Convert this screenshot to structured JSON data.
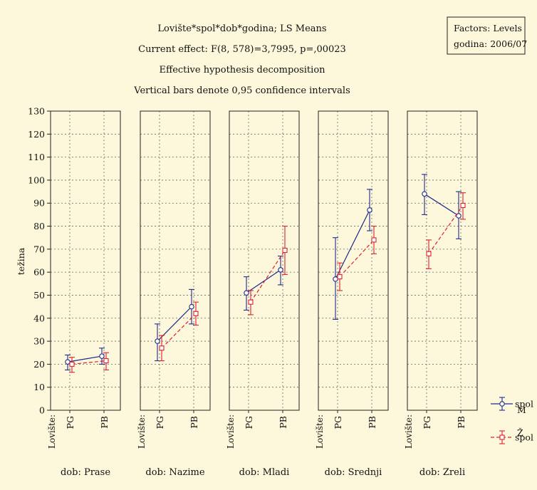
{
  "chart_data": {
    "type": "line",
    "title_lines": [
      "Lovište*spol*dob*godina; LS Means",
      "Current effect: F(8, 578)=3,7995, p=,00023",
      "Effective hypothesis decomposition",
      "Vertical bars denote 0,95 confidence intervals"
    ],
    "factors_box": [
      "Factors: Levels",
      "godina: 2006/07"
    ],
    "ylabel": "težina",
    "ylim": [
      0,
      130
    ],
    "yticks": [
      0,
      10,
      20,
      30,
      40,
      50,
      60,
      70,
      80,
      90,
      100,
      110,
      120,
      130
    ],
    "x_factor_label": "Lovište:",
    "categories": [
      "PG",
      "PB"
    ],
    "grid": true,
    "legend": {
      "title": "spol",
      "position": "bottom-right",
      "entries": [
        {
          "label": "spol",
          "level": "M",
          "color": "#1f2a8a",
          "marker": "circle",
          "line": "solid"
        },
        {
          "label": "spol",
          "level": "Ž",
          "color": "#e0202a",
          "marker": "square",
          "line": "dashed"
        }
      ]
    },
    "panels": [
      {
        "title": "dob: Prase",
        "series": [
          {
            "name": "M",
            "values": [
              21,
              23.5
            ],
            "ci_low": [
              17.5,
              20
            ],
            "ci_high": [
              24,
              27
            ]
          },
          {
            "name": "Ž",
            "values": [
              20,
              21.5
            ],
            "ci_low": [
              16.5,
              17.5
            ],
            "ci_high": [
              23,
              25
            ]
          }
        ]
      },
      {
        "title": "dob: Nazime",
        "series": [
          {
            "name": "M",
            "values": [
              30,
              45
            ],
            "ci_low": [
              21.5,
              37.5
            ],
            "ci_high": [
              37.5,
              52.5
            ]
          },
          {
            "name": "Ž",
            "values": [
              27,
              42
            ],
            "ci_low": [
              21.5,
              37
            ],
            "ci_high": [
              32.5,
              47
            ]
          }
        ]
      },
      {
        "title": "dob: Mladi",
        "series": [
          {
            "name": "M",
            "values": [
              51,
              61
            ],
            "ci_low": [
              43.5,
              54.5
            ],
            "ci_high": [
              58,
              67
            ]
          },
          {
            "name": "Ž",
            "values": [
              47,
              69.5
            ],
            "ci_low": [
              41.5,
              59
            ],
            "ci_high": [
              52,
              80
            ]
          }
        ]
      },
      {
        "title": "dob: Srednji",
        "series": [
          {
            "name": "M",
            "values": [
              57,
              87
            ],
            "ci_low": [
              39.5,
              78
            ],
            "ci_high": [
              75,
              96
            ]
          },
          {
            "name": "Ž",
            "values": [
              58,
              74
            ],
            "ci_low": [
              52,
              68
            ],
            "ci_high": [
              64,
              80
            ]
          }
        ]
      },
      {
        "title": "dob: Zreli",
        "series": [
          {
            "name": "M",
            "values": [
              94,
              84.5
            ],
            "ci_low": [
              85,
              74.5
            ],
            "ci_high": [
              102.5,
              95
            ]
          },
          {
            "name": "Ž",
            "values": [
              68,
              89
            ],
            "ci_low": [
              61.5,
              83
            ],
            "ci_high": [
              74,
              94.5
            ]
          }
        ]
      }
    ]
  }
}
